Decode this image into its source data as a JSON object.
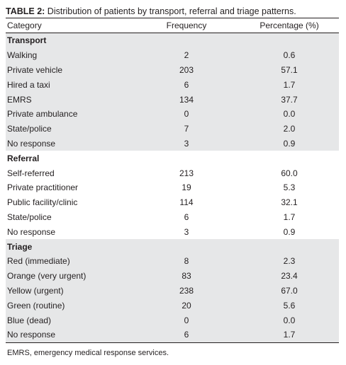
{
  "caption": {
    "lead": "TABLE 2:",
    "text": " Distribution of patients by transport, referral and triage patterns."
  },
  "table": {
    "headers": {
      "category": "Category",
      "frequency": "Frequency",
      "percentage": "Percentage (%)"
    },
    "sections": [
      {
        "title": "Transport",
        "rows": [
          {
            "category": "Walking",
            "frequency": "2",
            "percentage": "0.6"
          },
          {
            "category": "Private vehicle",
            "frequency": "203",
            "percentage": "57.1"
          },
          {
            "category": "Hired a taxi",
            "frequency": "6",
            "percentage": "1.7"
          },
          {
            "category": "EMRS",
            "frequency": "134",
            "percentage": "37.7"
          },
          {
            "category": "Private ambulance",
            "frequency": "0",
            "percentage": "0.0"
          },
          {
            "category": "State/police",
            "frequency": "7",
            "percentage": "2.0"
          },
          {
            "category": "No response",
            "frequency": "3",
            "percentage": "0.9"
          }
        ]
      },
      {
        "title": "Referral",
        "rows": [
          {
            "category": "Self-referred",
            "frequency": "213",
            "percentage": "60.0"
          },
          {
            "category": "Private practitioner",
            "frequency": "19",
            "percentage": "5.3"
          },
          {
            "category": "Public facility/clinic",
            "frequency": "114",
            "percentage": "32.1"
          },
          {
            "category": "State/police",
            "frequency": "6",
            "percentage": "1.7"
          },
          {
            "category": "No response",
            "frequency": "3",
            "percentage": "0.9"
          }
        ]
      },
      {
        "title": "Triage",
        "rows": [
          {
            "category": "Red (immediate)",
            "frequency": "8",
            "percentage": "2.3"
          },
          {
            "category": "Orange (very urgent)",
            "frequency": "83",
            "percentage": "23.4"
          },
          {
            "category": "Yellow (urgent)",
            "frequency": "238",
            "percentage": "67.0"
          },
          {
            "category": "Green (routine)",
            "frequency": "20",
            "percentage": "5.6"
          },
          {
            "category": "Blue (dead)",
            "frequency": "0",
            "percentage": "0.0"
          },
          {
            "category": "No response",
            "frequency": "6",
            "percentage": "1.7"
          }
        ]
      }
    ]
  },
  "footnote": "EMRS, emergency medical response services."
}
